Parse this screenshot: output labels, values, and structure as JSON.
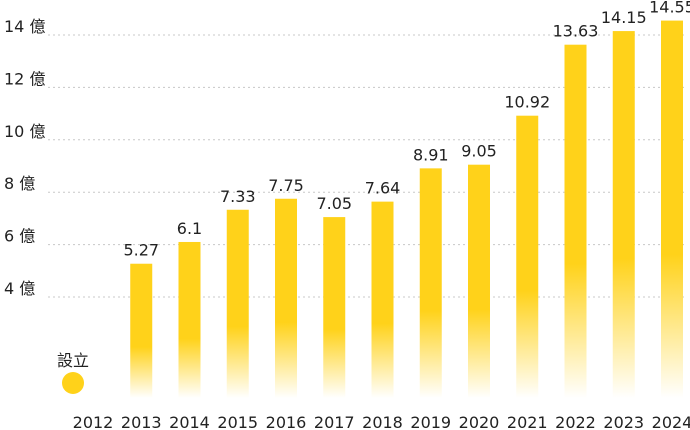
{
  "chart_data": {
    "type": "bar",
    "title": "",
    "xlabel": "",
    "ylabel": "",
    "y_unit": "億",
    "ylim": [
      3,
      15
    ],
    "grid": true,
    "y_ticks": [
      {
        "value": 4,
        "label": "4 億"
      },
      {
        "value": 6,
        "label": "6 億"
      },
      {
        "value": 8,
        "label": "8 億"
      },
      {
        "value": 10,
        "label": "10 億"
      },
      {
        "value": 12,
        "label": "12 億"
      },
      {
        "value": 14,
        "label": "14 億"
      }
    ],
    "categories": [
      "2012",
      "2013",
      "2014",
      "2015",
      "2016",
      "2017",
      "2018",
      "2019",
      "2020",
      "2021",
      "2022",
      "2023",
      "2024"
    ],
    "values": [
      null,
      5.27,
      6.1,
      7.33,
      7.75,
      7.05,
      7.64,
      8.91,
      9.05,
      10.92,
      13.63,
      14.15,
      14.55
    ],
    "value_labels": [
      "",
      "5.27",
      "6.1",
      "7.33",
      "7.75",
      "7.05",
      "7.64",
      "8.91",
      "9.05",
      "10.92",
      "13.63",
      "14.15",
      "14.55"
    ],
    "annotation": {
      "category": "2012",
      "label": "設立",
      "marker": "circle"
    },
    "colors": {
      "bar": "#FFD21A",
      "bar_fade": "#FFFFFF",
      "marker": "#FFD21A",
      "grid": "#C8C8C8",
      "text": "#222222"
    }
  }
}
